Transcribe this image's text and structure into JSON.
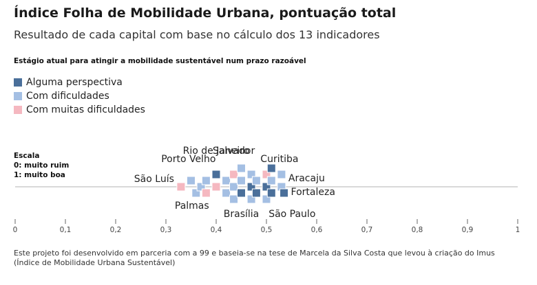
{
  "header": {
    "title": "Índice Folha de Mobilidade Urbana, pontuação total",
    "subtitle": "Resultado de cada capital com base no cálculo dos 13 indicadores"
  },
  "legend": {
    "title": "Estágio atual para atingir a mobilidade sustentável num prazo razoável",
    "items": [
      {
        "label": "Alguma perspectiva",
        "color": "#4a6f9a"
      },
      {
        "label": "Com dificuldades",
        "color": "#a4bfe3"
      },
      {
        "label": "Com muitas dificuldades",
        "color": "#f5b8c0"
      }
    ]
  },
  "scale": {
    "title": "Escala",
    "min_label": "0: muito ruim",
    "max_label": "1: muito boa"
  },
  "footer": {
    "line1": "Este projeto foi desenvolvido em parceria com a 99 e baseia-se na tese de Marcela da Silva Costa que levou à criação do Imus",
    "line2": "(Índice de Mobilidade Urbana Sustentável)"
  },
  "chart_data": {
    "type": "scatter",
    "title": "Índice Folha de Mobilidade Urbana, pontuação total",
    "xlim": [
      0,
      1
    ],
    "xticks": [
      "0",
      "0,1",
      "0,2",
      "0,3",
      "0,4",
      "0,5",
      "0,6",
      "0,7",
      "0,8",
      "0,9",
      "1"
    ],
    "categories": [
      "Alguma perspectiva",
      "Com dificuldades",
      "Com muitas dificuldades"
    ],
    "points": [
      {
        "x": 0.33,
        "level": 0,
        "category": "Com muitas dificuldades"
      },
      {
        "x": 0.35,
        "level": 1,
        "category": "Com dificuldades"
      },
      {
        "x": 0.36,
        "level": -1,
        "category": "Com dificuldades"
      },
      {
        "x": 0.37,
        "level": 0,
        "category": "Com dificuldades"
      },
      {
        "x": 0.38,
        "level": 1,
        "category": "Com dificuldades"
      },
      {
        "x": 0.38,
        "level": -1,
        "category": "Com muitas dificuldades"
      },
      {
        "x": 0.4,
        "level": 2,
        "category": "Alguma perspectiva"
      },
      {
        "x": 0.4,
        "level": 0,
        "category": "Com muitas dificuldades"
      },
      {
        "x": 0.42,
        "level": 1,
        "category": "Com dificuldades"
      },
      {
        "x": 0.42,
        "level": -1,
        "category": "Com dificuldades"
      },
      {
        "x": 0.435,
        "level": 2,
        "category": "Com muitas dificuldades"
      },
      {
        "x": 0.435,
        "level": 0,
        "category": "Com dificuldades"
      },
      {
        "x": 0.435,
        "level": -2,
        "category": "Com dificuldades"
      },
      {
        "x": 0.45,
        "level": 3,
        "category": "Com dificuldades"
      },
      {
        "x": 0.45,
        "level": 1,
        "category": "Com dificuldades"
      },
      {
        "x": 0.45,
        "level": -1,
        "category": "Alguma perspectiva"
      },
      {
        "x": 0.47,
        "level": 2,
        "category": "Com dificuldades"
      },
      {
        "x": 0.47,
        "level": 0,
        "category": "Alguma perspectiva"
      },
      {
        "x": 0.47,
        "level": -2,
        "category": "Com dificuldades"
      },
      {
        "x": 0.48,
        "level": 1,
        "category": "Com dificuldades"
      },
      {
        "x": 0.48,
        "level": -1,
        "category": "Alguma perspectiva"
      },
      {
        "x": 0.5,
        "level": 2,
        "category": "Com muitas dificuldades"
      },
      {
        "x": 0.5,
        "level": 0,
        "category": "Alguma perspectiva"
      },
      {
        "x": 0.5,
        "level": -2,
        "category": "Com dificuldades"
      },
      {
        "x": 0.51,
        "level": 3,
        "category": "Alguma perspectiva"
      },
      {
        "x": 0.51,
        "level": 1,
        "category": "Com dificuldades"
      },
      {
        "x": 0.51,
        "level": -1,
        "category": "Alguma perspectiva"
      },
      {
        "x": 0.53,
        "level": 2,
        "category": "Com dificuldades"
      },
      {
        "x": 0.53,
        "level": 0,
        "category": "Com dificuldades"
      },
      {
        "x": 0.535,
        "level": -1,
        "category": "Alguma perspectiva"
      }
    ],
    "annotations": [
      {
        "label": "Rio de Janeiro",
        "x": 0.4,
        "position": "above"
      },
      {
        "label": "Salvador",
        "x": 0.435,
        "position": "above"
      },
      {
        "label": "Curitiba",
        "x": 0.51,
        "position": "above"
      },
      {
        "label": "Porto Velho",
        "x": 0.38,
        "position": "above"
      },
      {
        "label": "São Luís",
        "x": 0.33,
        "position": "left"
      },
      {
        "label": "Aracaju",
        "x": 0.53,
        "position": "right"
      },
      {
        "label": "Fortaleza",
        "x": 0.535,
        "position": "right"
      },
      {
        "label": "Palmas",
        "x": 0.36,
        "position": "below"
      },
      {
        "label": "Brasília",
        "x": 0.45,
        "position": "below"
      },
      {
        "label": "São Paulo",
        "x": 0.51,
        "position": "below"
      }
    ]
  }
}
